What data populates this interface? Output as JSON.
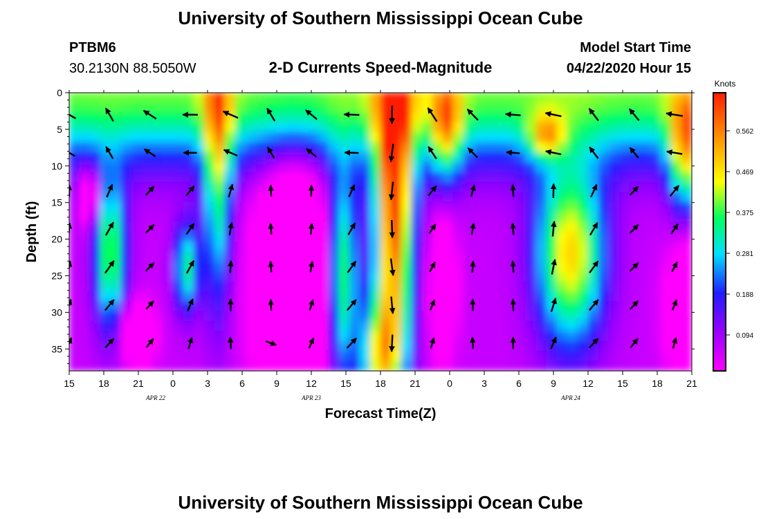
{
  "header": {
    "title": "University of Southern Mississippi Ocean Cube",
    "station_id": "PTBM6",
    "station_coords": "30.2130N 88.5050W",
    "model_label": "Model Start Time",
    "model_time": "04/22/2020 Hour 15",
    "footer_title": "University of Southern Mississippi Ocean Cube"
  },
  "chart_data": {
    "type": "heatmap",
    "title": "2-D Currents Speed-Magnitude",
    "xlabel": "Forecast Time(Z)",
    "ylabel": "Depth (ft)",
    "x_ticks": [
      "15",
      "18",
      "21",
      "0",
      "3",
      "6",
      "9",
      "12",
      "15",
      "18",
      "21",
      "0",
      "3",
      "6",
      "9",
      "12",
      "15",
      "18",
      "21"
    ],
    "date_labels": [
      "APR 22",
      "APR 23",
      "APR 24"
    ],
    "y_ticks": [
      "0",
      "5",
      "10",
      "15",
      "20",
      "25",
      "30",
      "35"
    ],
    "ylim": [
      0,
      38
    ],
    "y_inverted": true,
    "colorbar": {
      "unit": "Knots",
      "ticks": [
        "0.562",
        "0.469",
        "0.375",
        "0.281",
        "0.188",
        "0.094"
      ],
      "colors": [
        "#ff00ff",
        "#9a00ff",
        "#1e1eff",
        "#00e0ff",
        "#00ff60",
        "#ffff00",
        "#ffa000",
        "#ff1e00"
      ]
    },
    "vector_field": "direction arrows on an hourly-depth grid (approximate)"
  }
}
